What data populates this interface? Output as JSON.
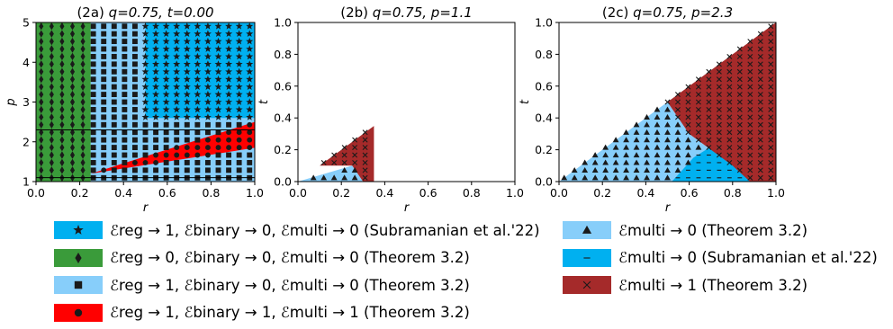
{
  "colors": {
    "cyan": "#00b0f0",
    "green": "#3a9b3a",
    "lightblue": "#87cefa",
    "red": "#ff0000",
    "darkred": "#a52a2a"
  },
  "chart_data": [
    {
      "type": "region",
      "title_prefix": "(2a)",
      "title_params": "q=0.75, t=0.00",
      "xlabel": "r",
      "ylabel": "p",
      "xlim": [
        0.0,
        1.0
      ],
      "ylim": [
        1,
        5
      ],
      "xticks": [
        "0.0",
        "0.2",
        "0.4",
        "0.6",
        "0.8",
        "1.0"
      ],
      "xtick_values": [
        0.0,
        0.2,
        0.4,
        0.6,
        0.8,
        1.0
      ],
      "yticks": [
        "1",
        "2",
        "3",
        "4",
        "5"
      ],
      "ytick_values": [
        1,
        2,
        3,
        4,
        5
      ],
      "hlines": [
        2.3,
        1.1
      ],
      "regions": [
        {
          "label": "green",
          "marker": "diamond",
          "polygon": [
            [
              0.0,
              1.0
            ],
            [
              0.25,
              1.0
            ],
            [
              0.25,
              5.0
            ],
            [
              0.0,
              5.0
            ]
          ]
        },
        {
          "label": "lightblue",
          "marker": "square",
          "polygon": [
            [
              0.25,
              1.0
            ],
            [
              1.0,
              1.0
            ],
            [
              1.0,
              5.0
            ],
            [
              0.25,
              5.0
            ]
          ]
        },
        {
          "label": "cyan",
          "marker": "star",
          "polygon": [
            [
              0.5,
              2.6
            ],
            [
              0.5,
              5.0
            ],
            [
              1.0,
              5.0
            ],
            [
              1.0,
              2.6
            ]
          ]
        },
        {
          "label": "red",
          "marker": "circle",
          "polygon": [
            [
              0.25,
              1.2
            ],
            [
              1.0,
              2.5
            ],
            [
              1.0,
              1.85
            ],
            [
              0.25,
              1.2
            ]
          ]
        }
      ]
    },
    {
      "type": "region",
      "title_prefix": "(2b)",
      "title_params": "q=0.75, p=1.1",
      "xlabel": "r",
      "ylabel": "t",
      "xlim": [
        0.0,
        1.0
      ],
      "ylim": [
        0.0,
        1.0
      ],
      "xticks": [
        "0.0",
        "0.2",
        "0.4",
        "0.6",
        "0.8",
        "1.0"
      ],
      "xtick_values": [
        0.0,
        0.2,
        0.4,
        0.6,
        0.8,
        1.0
      ],
      "yticks": [
        "0.0",
        "0.2",
        "0.4",
        "0.6",
        "0.8",
        "1.0"
      ],
      "ytick_values": [
        0.0,
        0.2,
        0.4,
        0.6,
        0.8,
        1.0
      ],
      "regions": [
        {
          "label": "lightblue",
          "marker": "triangle",
          "polygon": [
            [
              0.0,
              0.0
            ],
            [
              0.3,
              0.0
            ],
            [
              0.25,
              0.1
            ],
            [
              0.0,
              0.0
            ]
          ]
        },
        {
          "label": "darkred",
          "marker": "x",
          "polygon": [
            [
              0.1,
              0.1
            ],
            [
              0.35,
              0.35
            ],
            [
              0.35,
              0.0
            ],
            [
              0.3,
              0.0
            ],
            [
              0.25,
              0.1
            ]
          ]
        }
      ]
    },
    {
      "type": "region",
      "title_prefix": "(2c)",
      "title_params": "q=0.75, p=2.3",
      "xlabel": "r",
      "ylabel": "t",
      "xlim": [
        0.0,
        1.0
      ],
      "ylim": [
        0.0,
        1.0
      ],
      "xticks": [
        "0.0",
        "0.2",
        "0.4",
        "0.6",
        "0.8",
        "1.0"
      ],
      "xtick_values": [
        0.0,
        0.2,
        0.4,
        0.6,
        0.8,
        1.0
      ],
      "yticks": [
        "0.0",
        "0.2",
        "0.4",
        "0.6",
        "0.8",
        "1.0"
      ],
      "ytick_values": [
        0.0,
        0.2,
        0.4,
        0.6,
        0.8,
        1.0
      ],
      "regions": [
        {
          "label": "lightblue",
          "marker": "triangle",
          "polygon": [
            [
              0.0,
              0.0
            ],
            [
              0.88,
              0.0
            ],
            [
              0.8,
              0.1
            ],
            [
              0.6,
              0.3
            ],
            [
              0.5,
              0.5
            ],
            [
              0.0,
              0.0
            ]
          ]
        },
        {
          "label": "cyan",
          "marker": "dash",
          "polygon": [
            [
              0.52,
              0.0
            ],
            [
              0.88,
              0.0
            ],
            [
              0.84,
              0.06
            ],
            [
              0.8,
              0.2
            ],
            [
              0.7,
              0.22
            ],
            [
              0.62,
              0.15
            ],
            [
              0.52,
              0.0
            ]
          ]
        },
        {
          "label": "darkred",
          "marker": "x",
          "polygon": [
            [
              0.5,
              0.5
            ],
            [
              1.0,
              1.0
            ],
            [
              1.0,
              0.0
            ],
            [
              0.88,
              0.0
            ],
            [
              0.8,
              0.1
            ],
            [
              0.6,
              0.3
            ]
          ]
        }
      ]
    }
  ],
  "legend_left": [
    {
      "color": "cyan",
      "marker": "star",
      "text": "ℰreg → 1, ℰbinary → 0, ℰmulti → 0 (Subramanian et al.'22)"
    },
    {
      "color": "green",
      "marker": "diamond",
      "text": "ℰreg → 0, ℰbinary → 0, ℰmulti → 0 (Theorem 3.2)"
    },
    {
      "color": "lightblue",
      "marker": "square",
      "text": "ℰreg → 1, ℰbinary → 0, ℰmulti → 0 (Theorem 3.2)"
    },
    {
      "color": "red",
      "marker": "circle",
      "text": "ℰreg → 1, ℰbinary → 1, ℰmulti → 1 (Theorem 3.2)"
    }
  ],
  "legend_right": [
    {
      "color": "lightblue",
      "marker": "triangle",
      "text": "ℰmulti → 0 (Theorem 3.2)"
    },
    {
      "color": "cyan",
      "marker": "dash",
      "text": "ℰmulti → 0 (Subramanian et al.'22)"
    },
    {
      "color": "darkred",
      "marker": "x",
      "text": "ℰmulti → 1 (Theorem 3.2)"
    }
  ]
}
